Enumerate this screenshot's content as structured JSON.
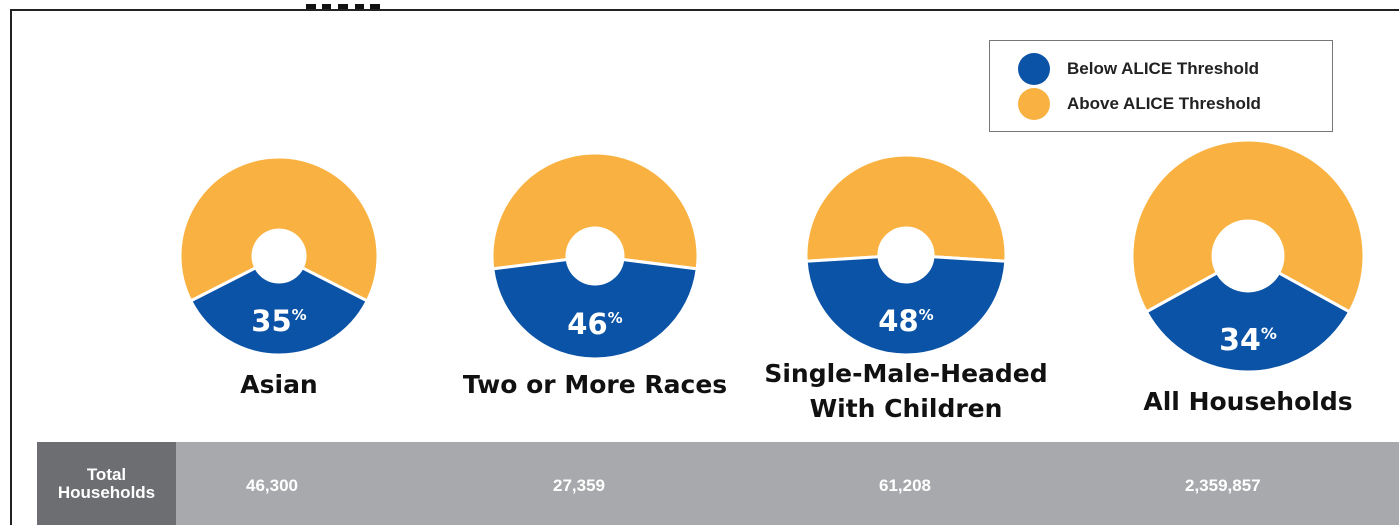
{
  "colors": {
    "below": "#0b53a6",
    "above": "#f9b241",
    "header_bg": "#6d6e71",
    "row_bg": "#a7a9ac"
  },
  "legend": {
    "below_label": "Below ALICE Threshold",
    "above_label": "Above ALICE Threshold"
  },
  "table": {
    "header_line1": "Total",
    "header_line2": "Households",
    "values": [
      "46,300",
      "27,359",
      "61,208",
      "2,359,857"
    ]
  },
  "chart_data": {
    "type": "pie",
    "variant": "donut",
    "title": "",
    "legend_position": "top-right",
    "series": [
      {
        "name": "Below ALICE Threshold",
        "color": "#0b53a6"
      },
      {
        "name": "Above ALICE Threshold",
        "color": "#f9b241"
      }
    ],
    "charts": [
      {
        "category_lines": [
          "Asian"
        ],
        "below_pct": 35,
        "label": "35",
        "total_households": "46,300"
      },
      {
        "category_lines": [
          "Two or More Races"
        ],
        "below_pct": 46,
        "label": "46",
        "total_households": "27,359"
      },
      {
        "category_lines": [
          "Single-Male-Headed",
          "With Children"
        ],
        "below_pct": 48,
        "label": "48",
        "total_households": "61,208"
      },
      {
        "category_lines": [
          "All Households"
        ],
        "below_pct": 34,
        "label": "34",
        "total_households": "2,359,857"
      }
    ],
    "percent_sign": "%"
  }
}
